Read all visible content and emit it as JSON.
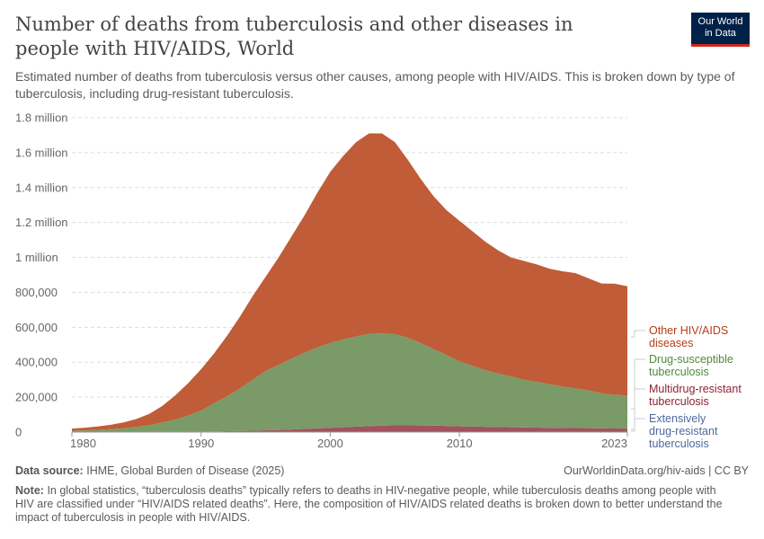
{
  "title": "Number of deaths from tuberculosis and other diseases in people with HIV/AIDS, World",
  "subtitle": "Estimated number of deaths from tuberculosis versus other causes, among people with HIV/AIDS. This is broken down by type of tuberculosis, including drug-resistant tuberculosis.",
  "logo": {
    "line1": "Our World",
    "line2": "in Data"
  },
  "footer": {
    "source_label": "Data source:",
    "source": "IHME, Global Burden of Disease (2025)",
    "link": "OurWorldinData.org/hiv-aids | CC BY",
    "note_label": "Note:",
    "note": "In global statistics, “tuberculosis deaths” typically refers to deaths in HIV-negative people, while tuberculosis deaths among people with HIV are classified under “HIV/AIDS related deaths”. Here, the composition of HIV/AIDS related deaths is broken down to better understand the impact of tuberculosis in people with HIV/AIDS."
  },
  "chart_data": {
    "type": "area",
    "stacked": true,
    "title": "Number of deaths from tuberculosis and other diseases in people with HIV/AIDS, World",
    "xlim": [
      1980,
      2023
    ],
    "ylim": [
      0,
      1800000
    ],
    "grid": true,
    "legend_placement": "right",
    "x_ticks": [
      {
        "v": 1980,
        "label": "1980"
      },
      {
        "v": 1990,
        "label": "1990"
      },
      {
        "v": 2000,
        "label": "2000"
      },
      {
        "v": 2010,
        "label": "2010"
      },
      {
        "v": 2023,
        "label": "2023"
      }
    ],
    "y_ticks": [
      {
        "v": 0,
        "label": "0"
      },
      {
        "v": 200000,
        "label": "200,000"
      },
      {
        "v": 400000,
        "label": "400,000"
      },
      {
        "v": 600000,
        "label": "600,000"
      },
      {
        "v": 800000,
        "label": "800,000"
      },
      {
        "v": 1000000,
        "label": "1 million"
      },
      {
        "v": 1200000,
        "label": "1.2 million"
      },
      {
        "v": 1400000,
        "label": "1.4 million"
      },
      {
        "v": 1600000,
        "label": "1.6 million"
      },
      {
        "v": 1800000,
        "label": "1.8 million"
      }
    ],
    "x": [
      1980,
      1981,
      1982,
      1983,
      1984,
      1985,
      1986,
      1987,
      1988,
      1989,
      1990,
      1991,
      1992,
      1993,
      1994,
      1995,
      1996,
      1997,
      1998,
      1999,
      2000,
      2001,
      2002,
      2003,
      2004,
      2005,
      2006,
      2007,
      2008,
      2009,
      2010,
      2011,
      2012,
      2013,
      2014,
      2015,
      2016,
      2017,
      2018,
      2019,
      2020,
      2021,
      2022,
      2023
    ],
    "series": [
      {
        "name": "Extensively drug-resistant tuberculosis",
        "color": "#4c6a9c",
        "label_color": "#4c6a9c",
        "values": [
          0,
          0,
          0,
          0,
          0,
          0,
          0,
          0,
          0,
          0,
          0,
          0,
          0,
          0,
          0,
          0,
          0,
          0,
          0,
          0,
          300,
          500,
          800,
          1000,
          1300,
          1500,
          1700,
          1900,
          2000,
          2100,
          2100,
          2100,
          2000,
          2000,
          1900,
          1800,
          1700,
          1600,
          1500,
          1400,
          1300,
          1200,
          1100,
          1000
        ]
      },
      {
        "name": "Multidrug-resistant tuberculosis",
        "color": "#a0525e",
        "label_color": "#8c2236",
        "values": [
          200,
          200,
          300,
          300,
          400,
          500,
          700,
          1000,
          1500,
          2000,
          2500,
          3500,
          5000,
          6500,
          8000,
          10000,
          12000,
          15000,
          18000,
          21000,
          24000,
          27000,
          30000,
          33000,
          36000,
          37000,
          37000,
          36000,
          35000,
          33000,
          31000,
          30000,
          28000,
          27000,
          26000,
          25000,
          24000,
          23000,
          22000,
          21500,
          21000,
          20000,
          19500,
          19000
        ]
      },
      {
        "name": "Drug-susceptible tuberculosis",
        "color": "#7a9a68",
        "label_color": "#4f8a3a",
        "values": [
          7800,
          9800,
          12700,
          16700,
          21600,
          29500,
          39300,
          54000,
          70500,
          93000,
          120500,
          161500,
          200000,
          243500,
          292000,
          340000,
          373000,
          405000,
          437000,
          464000,
          486000,
          503000,
          517000,
          528000,
          529000,
          522000,
          501000,
          472000,
          438000,
          405000,
          372000,
          348000,
          325000,
          306000,
          290000,
          273000,
          261000,
          249000,
          237000,
          227000,
          216000,
          201000,
          192000,
          190000
        ]
      },
      {
        "name": "Other HIV/AIDS diseases",
        "color": "#c05c38",
        "label_color": "#b53d16",
        "values": [
          12000,
          15000,
          19000,
          25000,
          33000,
          45000,
          65000,
          95000,
          138000,
          185000,
          237000,
          285000,
          345000,
          410000,
          480000,
          540000,
          615000,
          700000,
          785000,
          885000,
          980000,
          1050000,
          1112000,
          1148000,
          1144000,
          1100000,
          1020000,
          940000,
          875000,
          830000,
          805000,
          770000,
          735000,
          705000,
          682000,
          680000,
          673000,
          661000,
          660000,
          660000,
          642000,
          628000,
          637000,
          625000
        ]
      }
    ]
  }
}
